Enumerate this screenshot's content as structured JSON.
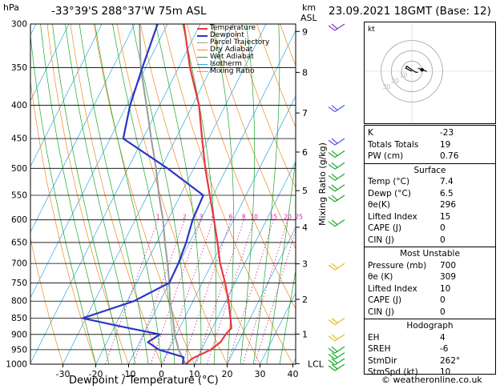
{
  "header": {
    "location": "-33°39'S 288°37'W 75m ASL",
    "datetime": "23.09.2021 18GMT (Base: 12)",
    "hpa_label": "hPa",
    "km_label": "km",
    "asl_label": "ASL"
  },
  "chart_data": {
    "type": "skewt",
    "xlabel": "Dewpoint / Temperature (°C)",
    "ylabel_right": "Mixing Ratio (g/kg)",
    "temperature_ticks": [
      -30,
      -20,
      -10,
      0,
      10,
      20,
      30,
      40
    ],
    "pressure_levels": [
      300,
      350,
      400,
      450,
      500,
      550,
      600,
      650,
      700,
      750,
      800,
      850,
      900,
      950,
      1000
    ],
    "km_ticks": [
      {
        "label": "9",
        "p": 308
      },
      {
        "label": "8",
        "p": 356
      },
      {
        "label": "7",
        "p": 411
      },
      {
        "label": "6",
        "p": 472
      },
      {
        "label": "5",
        "p": 541
      },
      {
        "label": "4",
        "p": 616
      },
      {
        "label": "3",
        "p": 701
      },
      {
        "label": "2",
        "p": 795
      },
      {
        "label": "1",
        "p": 899
      },
      {
        "label": "LCL",
        "p": 998
      }
    ],
    "mixing_ratio_labels": [
      "1",
      "2",
      "3",
      "4",
      "6",
      "8",
      "10",
      "15",
      "20",
      "25"
    ],
    "mixing_ratio_values": [
      1,
      2,
      3,
      4,
      6,
      8,
      10,
      15,
      20,
      25
    ],
    "legend": [
      {
        "name": "Temperature",
        "color": "#e8383d"
      },
      {
        "name": "Dewpoint",
        "color": "#2b34c8"
      },
      {
        "name": "Parcel Trajectory",
        "color": "#9b9b9b"
      },
      {
        "name": "Dry Adiabat",
        "color": "#f08a1e"
      },
      {
        "name": "Wet Adiabat",
        "color": "#1aa82a"
      },
      {
        "name": "Isotherm",
        "color": "#2aa7e0"
      },
      {
        "name": "Mixing Ratio",
        "color": "#d21f9b"
      }
    ],
    "series": [
      {
        "name": "Temperature",
        "points": [
          [
            1000,
            7.4
          ],
          [
            980,
            8.5
          ],
          [
            950,
            12.8
          ],
          [
            925,
            14.6
          ],
          [
            900,
            15.0
          ],
          [
            880,
            15.8
          ],
          [
            850,
            14.0
          ],
          [
            800,
            10.8
          ],
          [
            750,
            7.0
          ],
          [
            700,
            2.5
          ],
          [
            650,
            -1.5
          ],
          [
            600,
            -6.0
          ],
          [
            550,
            -11.0
          ],
          [
            500,
            -16.5
          ],
          [
            450,
            -22.0
          ],
          [
            400,
            -28.0
          ],
          [
            350,
            -36.5
          ],
          [
            300,
            -45.0
          ]
        ]
      },
      {
        "name": "Dewpoint",
        "points": [
          [
            1000,
            6.5
          ],
          [
            975,
            5.6
          ],
          [
            950,
            -3.0
          ],
          [
            925,
            -7.5
          ],
          [
            900,
            -5.0
          ],
          [
            875,
            -18.0
          ],
          [
            850,
            -31.0
          ],
          [
            800,
            -18.0
          ],
          [
            750,
            -10.0
          ],
          [
            700,
            -10.2
          ],
          [
            650,
            -11.0
          ],
          [
            600,
            -12.5
          ],
          [
            550,
            -13.0
          ],
          [
            500,
            -28.0
          ],
          [
            450,
            -46.0
          ],
          [
            400,
            -49.0
          ],
          [
            350,
            -51.0
          ],
          [
            300,
            -53.0
          ]
        ]
      },
      {
        "name": "Parcel Trajectory",
        "points": [
          [
            1000,
            7.4
          ],
          [
            950,
            3.0
          ],
          [
            900,
            -0.5
          ],
          [
            850,
            -3.5
          ],
          [
            800,
            -7.0
          ],
          [
            750,
            -10.0
          ],
          [
            700,
            -13.5
          ],
          [
            650,
            -17.5
          ],
          [
            600,
            -21.5
          ],
          [
            550,
            -26.5
          ],
          [
            500,
            -31.5
          ],
          [
            450,
            -37.5
          ],
          [
            400,
            -44.0
          ],
          [
            350,
            -51.5
          ],
          [
            300,
            -58.5
          ]
        ]
      }
    ],
    "wind_barbs_p": [
      300,
      400,
      450,
      470,
      490,
      510,
      530,
      550,
      600,
      700,
      850,
      900,
      940,
      960,
      980,
      1000
    ]
  },
  "indices": {
    "rows": [
      {
        "k": "K",
        "v": "-23"
      },
      {
        "k": "Totals Totals",
        "v": "19"
      },
      {
        "k": "PW (cm)",
        "v": "0.76"
      }
    ],
    "surface_title": "Surface",
    "surface": [
      {
        "k": "Temp (°C)",
        "v": "7.4"
      },
      {
        "k": "Dewp (°C)",
        "v": "6.5"
      },
      {
        "k": "θe(K)",
        "v": "296"
      },
      {
        "k": "Lifted Index",
        "v": "15"
      },
      {
        "k": "CAPE (J)",
        "v": "0"
      },
      {
        "k": "CIN (J)",
        "v": "0"
      }
    ],
    "unstable_title": "Most Unstable",
    "unstable": [
      {
        "k": "Pressure (mb)",
        "v": "700"
      },
      {
        "k": "θe (K)",
        "v": "309"
      },
      {
        "k": "Lifted Index",
        "v": "10"
      },
      {
        "k": "CAPE (J)",
        "v": "0"
      },
      {
        "k": "CIN (J)",
        "v": "0"
      }
    ],
    "hodo_title": "Hodograph",
    "hodo": [
      {
        "k": "EH",
        "v": "4"
      },
      {
        "k": "SREH",
        "v": "-6"
      },
      {
        "k": "StmDir",
        "v": "262°"
      },
      {
        "k": "StmSpd (kt)",
        "v": "10"
      }
    ]
  },
  "hodograph": {
    "unit": "kt",
    "ring_labels": [
      "10",
      "20",
      "30"
    ],
    "ring_values": [
      10,
      20,
      30
    ],
    "points_kt": [
      [
        0,
        0
      ],
      [
        -2,
        1
      ],
      [
        -6,
        3
      ],
      [
        -5,
        5
      ],
      [
        -2,
        3
      ],
      [
        2,
        0
      ],
      [
        4,
        -1
      ],
      [
        6,
        -1
      ]
    ],
    "storm_kt": [
      9.9,
      1.4
    ]
  },
  "footer": "© weatheronline.co.uk"
}
